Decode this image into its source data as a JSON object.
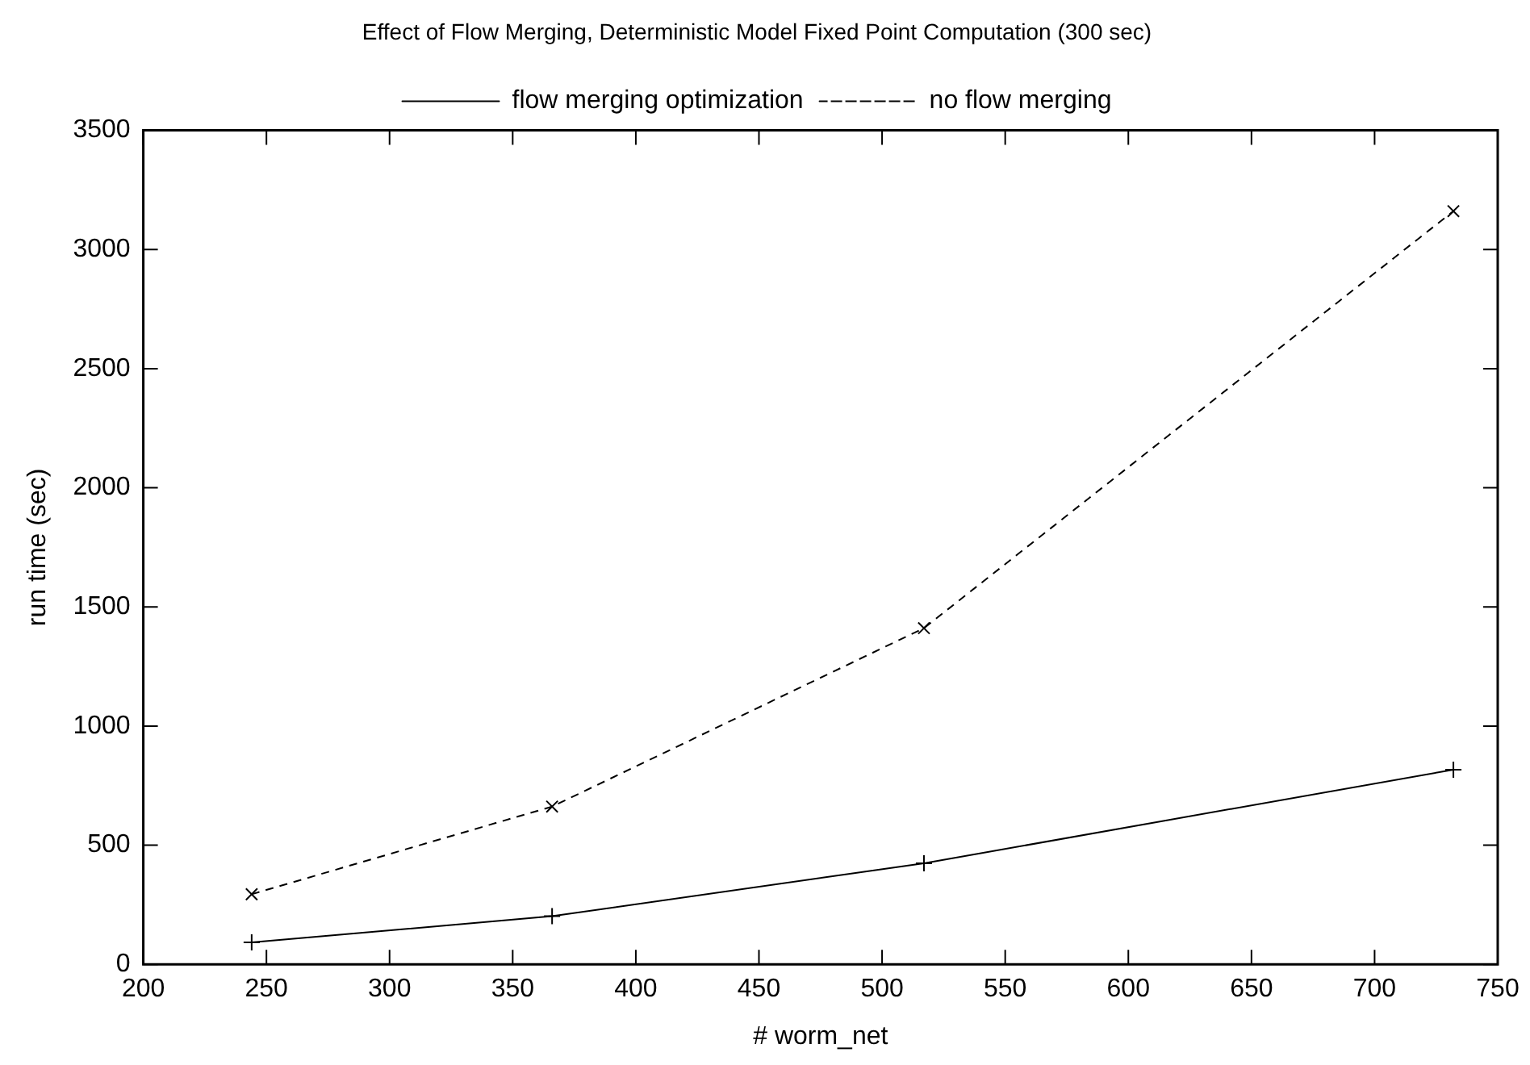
{
  "chart_data": {
    "type": "line",
    "title": "Effect of Flow Merging, Deterministic Model Fixed Point Computation (300 sec)",
    "xlabel": "# worm_net",
    "ylabel": "run time (sec)",
    "xlim": [
      200,
      750
    ],
    "xticks": [
      200,
      250,
      300,
      350,
      400,
      450,
      500,
      550,
      600,
      650,
      700,
      750
    ],
    "ylim": [
      0,
      3500
    ],
    "yticks": [
      0,
      500,
      1000,
      1500,
      2000,
      2500,
      3000,
      3500
    ],
    "grid": false,
    "legend": "top",
    "series": [
      {
        "name": "flow merging optimization",
        "color": "#000000",
        "marker": "plus",
        "line_style": "solid",
        "x": [
          244,
          366,
          517,
          732
        ],
        "values": [
          92,
          202,
          424,
          817
        ]
      },
      {
        "name": "no flow merging",
        "color": "#000000",
        "marker": "cross",
        "line_style": "dashed",
        "x": [
          244,
          366,
          517,
          732
        ],
        "values": [
          294,
          662,
          1411,
          3161
        ]
      }
    ]
  }
}
